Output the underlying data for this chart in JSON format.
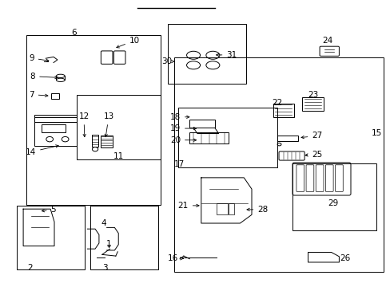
{
  "fig_width": 4.89,
  "fig_height": 3.6,
  "dpi": 100,
  "bg_color": "#ffffff",
  "line_color": "#000000",
  "text_color": "#000000",
  "line_width": 0.7,
  "font_size": 7.5
}
